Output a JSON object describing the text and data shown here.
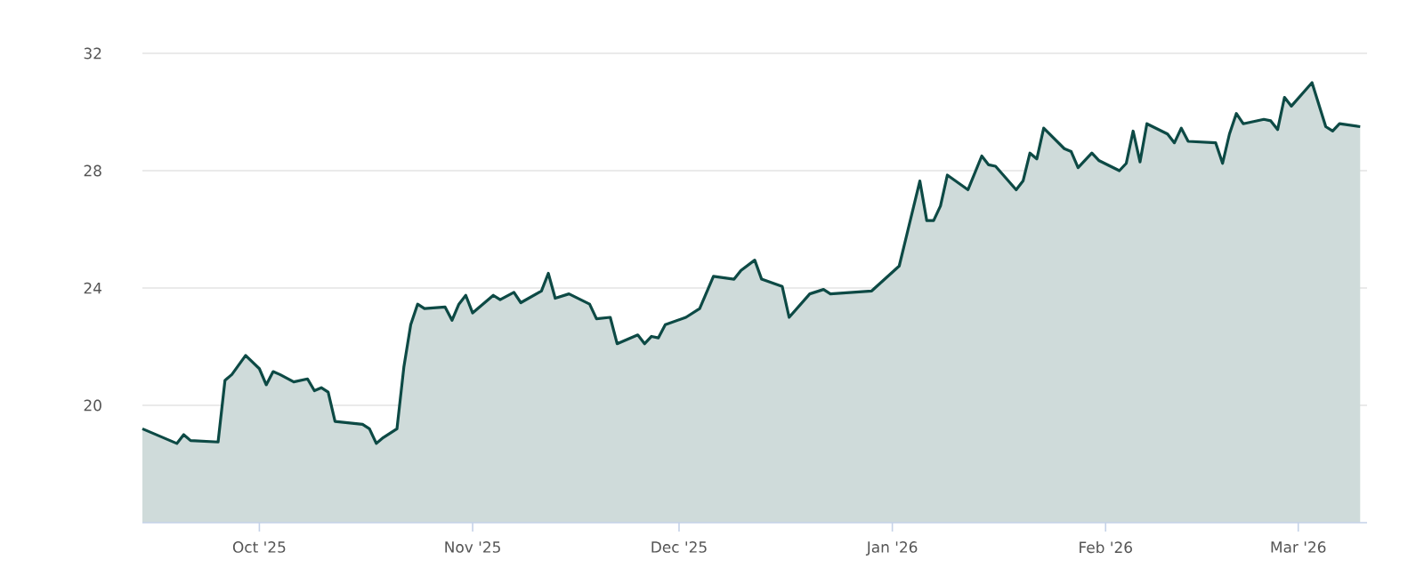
{
  "chart_data": {
    "type": "area",
    "x": [
      "2025-09-14",
      "2025-09-19",
      "2025-09-20",
      "2025-09-21",
      "2025-09-25",
      "2025-09-26",
      "2025-09-27",
      "2025-09-29",
      "2025-10-01",
      "2025-10-02",
      "2025-10-03",
      "2025-10-04",
      "2025-10-06",
      "2025-10-08",
      "2025-10-09",
      "2025-10-10",
      "2025-10-11",
      "2025-10-12",
      "2025-10-16",
      "2025-10-17",
      "2025-10-18",
      "2025-10-19",
      "2025-10-21",
      "2025-10-22",
      "2025-10-23",
      "2025-10-24",
      "2025-10-25",
      "2025-10-28",
      "2025-10-29",
      "2025-10-30",
      "2025-10-31",
      "2025-11-01",
      "2025-11-04",
      "2025-11-05",
      "2025-11-07",
      "2025-11-08",
      "2025-11-11",
      "2025-11-12",
      "2025-11-13",
      "2025-11-15",
      "2025-11-18",
      "2025-11-19",
      "2025-11-21",
      "2025-11-22",
      "2025-11-25",
      "2025-11-26",
      "2025-11-27",
      "2025-11-28",
      "2025-11-29",
      "2025-12-02",
      "2025-12-04",
      "2025-12-06",
      "2025-12-09",
      "2025-12-10",
      "2025-12-12",
      "2025-12-13",
      "2025-12-16",
      "2025-12-17",
      "2025-12-20",
      "2025-12-22",
      "2025-12-23",
      "2025-12-29",
      "2026-01-02",
      "2026-01-05",
      "2026-01-06",
      "2026-01-07",
      "2026-01-08",
      "2026-01-09",
      "2026-01-12",
      "2026-01-14",
      "2026-01-15",
      "2026-01-16",
      "2026-01-19",
      "2026-01-20",
      "2026-01-21",
      "2026-01-22",
      "2026-01-23",
      "2026-01-26",
      "2026-01-27",
      "2026-01-28",
      "2026-01-30",
      "2026-01-31",
      "2026-02-03",
      "2026-02-04",
      "2026-02-05",
      "2026-02-06",
      "2026-02-07",
      "2026-02-10",
      "2026-02-11",
      "2026-02-12",
      "2026-02-13",
      "2026-02-17",
      "2026-02-18",
      "2026-02-19",
      "2026-02-20",
      "2026-02-21",
      "2026-02-24",
      "2026-02-25",
      "2026-02-26",
      "2026-02-27",
      "2026-02-28",
      "2026-03-03",
      "2026-03-05",
      "2026-03-06",
      "2026-03-07",
      "2026-03-10"
    ],
    "series": [
      {
        "color": "#0d4a45",
        "values": [
          19.2,
          18.7,
          19.0,
          18.8,
          18.75,
          20.85,
          21.05,
          21.7,
          21.25,
          20.7,
          21.15,
          21.05,
          20.8,
          20.9,
          20.5,
          20.6,
          20.45,
          19.45,
          19.35,
          19.2,
          18.7,
          18.9,
          19.2,
          21.3,
          22.75,
          23.45,
          23.3,
          23.35,
          22.9,
          23.45,
          23.75,
          23.15,
          23.75,
          23.6,
          23.85,
          23.5,
          23.9,
          24.5,
          23.65,
          23.8,
          23.45,
          22.95,
          23.0,
          22.1,
          22.4,
          22.1,
          22.35,
          22.3,
          22.75,
          23.0,
          23.3,
          24.4,
          24.3,
          24.6,
          24.95,
          24.3,
          24.05,
          23.0,
          23.8,
          23.95,
          23.8,
          23.9,
          24.75,
          27.65,
          26.3,
          26.3,
          26.8,
          27.85,
          27.35,
          28.5,
          28.2,
          28.15,
          27.35,
          27.65,
          28.6,
          28.4,
          29.45,
          28.75,
          28.65,
          28.1,
          28.6,
          28.35,
          28.0,
          28.25,
          29.35,
          28.3,
          29.6,
          29.25,
          28.95,
          29.45,
          29.0,
          28.95,
          28.25,
          29.25,
          29.95,
          29.6,
          29.75,
          29.7,
          29.4,
          30.5,
          30.2,
          31.0,
          29.5,
          29.35,
          29.6,
          29.5
        ]
      }
    ],
    "xlim": [
      "2025-09-14",
      "2026-03-11"
    ],
    "xticks": [
      {
        "value": "2025-10-01",
        "label": "Oct '25"
      },
      {
        "value": "2025-11-01",
        "label": "Nov '25"
      },
      {
        "value": "2025-12-01",
        "label": "Dec '25"
      },
      {
        "value": "2026-01-01",
        "label": "Jan '26"
      },
      {
        "value": "2026-02-01",
        "label": "Feb '26"
      },
      {
        "value": "2026-03-01",
        "label": "Mar '26"
      }
    ],
    "ylim": [
      16,
      32
    ],
    "yticks": [
      20,
      24,
      28,
      32
    ],
    "grid": "y"
  }
}
